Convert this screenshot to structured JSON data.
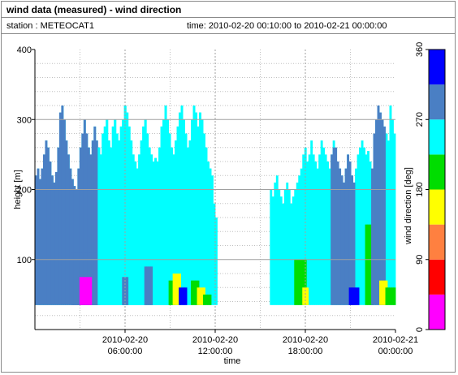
{
  "header": {
    "title": "wind data (measured) - wind direction",
    "station_label": "station : METEOCAT1",
    "time_label": "time: 2010-02-20 00:10:00 to 2010-02-21 00:00:00"
  },
  "chart_data": {
    "type": "heatmap",
    "title": "wind data (measured) - wind direction",
    "xlabel": "time",
    "ylabel": "height [m]",
    "xlim_hours": [
      0,
      24
    ],
    "ylim": [
      0,
      400
    ],
    "xticks": [
      {
        "hour": 6,
        "line1": "2010-02-20",
        "line2": "06:00:00"
      },
      {
        "hour": 12,
        "line1": "2010-02-20",
        "line2": "12:00:00"
      },
      {
        "hour": 18,
        "line1": "2010-02-20",
        "line2": "18:00:00"
      },
      {
        "hour": 24,
        "line1": "2010-02-21",
        "line2": "00:00:00"
      }
    ],
    "yticks": [
      100,
      200,
      300,
      400
    ],
    "grid": true,
    "colorbar": {
      "label": "wind direction [deg]",
      "min": 0,
      "max": 360,
      "ticks": [
        0,
        90,
        180,
        270,
        360
      ],
      "bins": [
        {
          "from": 0,
          "to": 45,
          "color": "#ff00ff"
        },
        {
          "from": 45,
          "to": 90,
          "color": "#ff0000"
        },
        {
          "from": 90,
          "to": 135,
          "color": "#ff8040"
        },
        {
          "from": 135,
          "to": 180,
          "color": "#ffff00"
        },
        {
          "from": 180,
          "to": 225,
          "color": "#00dd00"
        },
        {
          "from": 225,
          "to": 270,
          "color": "#00ffff"
        },
        {
          "from": 270,
          "to": 315,
          "color": "#4a7fc4"
        },
        {
          "from": 315,
          "to": 360,
          "color": "#0000ff"
        }
      ]
    },
    "profiles_bottom_m": 35,
    "profile_tops_m": [
      220,
      230,
      215,
      230,
      250,
      270,
      260,
      240,
      220,
      210,
      225,
      260,
      310,
      320,
      300,
      270,
      250,
      230,
      215,
      205,
      200,
      230,
      260,
      280,
      300,
      280,
      260,
      250,
      270,
      290,
      270,
      260,
      250,
      280,
      290,
      300,
      270,
      260,
      290,
      300,
      280,
      270,
      290,
      300,
      320,
      310,
      290,
      270,
      250,
      240,
      230,
      250,
      270,
      290,
      300,
      280,
      260,
      250,
      240,
      245,
      240,
      260,
      290,
      300,
      320,
      300,
      280,
      260,
      250,
      270,
      290,
      310,
      320,
      300,
      280,
      260,
      270,
      300,
      320,
      310,
      290,
      310,
      300,
      280,
      260,
      240,
      230,
      220,
      180,
      160,
      null,
      null,
      null,
      null,
      null,
      null,
      null,
      null,
      null,
      null,
      null,
      null,
      null,
      null,
      null,
      null,
      null,
      null,
      null,
      null,
      null,
      null,
      null,
      null,
      null,
      null,
      200,
      190,
      210,
      220,
      200,
      190,
      180,
      200,
      210,
      200,
      180,
      190,
      200,
      210,
      220,
      230,
      250,
      260,
      240,
      250,
      270,
      250,
      240,
      230,
      250,
      270,
      260,
      250,
      240,
      230,
      250,
      270,
      260,
      240,
      230,
      220,
      210,
      230,
      250,
      240,
      220,
      210,
      230,
      250,
      260,
      270,
      260,
      250,
      255,
      240,
      230,
      280,
      300,
      320,
      310,
      300,
      290,
      280,
      270,
      320,
      300,
      280
    ],
    "regions": [
      {
        "from_hour": 0.0,
        "to_hour": 4.2,
        "below_m": 400,
        "direction_deg": 292
      },
      {
        "from_hour": 2.5,
        "to_hour": 4.2,
        "below_m": 110,
        "direction_deg": 292
      },
      {
        "from_hour": 3.0,
        "to_hour": 3.7,
        "below_m": 75,
        "direction_deg": 20
      },
      {
        "from_hour": 4.2,
        "to_hour": 11.7,
        "below_m": 400,
        "direction_deg": 250
      },
      {
        "from_hour": 5.8,
        "to_hour": 6.2,
        "below_m": 75,
        "direction_deg": 292
      },
      {
        "from_hour": 7.4,
        "to_hour": 7.8,
        "below_m": 90,
        "direction_deg": 292
      },
      {
        "from_hour": 9.0,
        "to_hour": 9.3,
        "below_m": 70,
        "direction_deg": 200
      },
      {
        "from_hour": 9.3,
        "to_hour": 9.6,
        "below_m": 80,
        "direction_deg": 160
      },
      {
        "from_hour": 9.6,
        "to_hour": 10.0,
        "below_m": 60,
        "direction_deg": 335
      },
      {
        "from_hour": 10.4,
        "to_hour": 10.8,
        "below_m": 70,
        "direction_deg": 200
      },
      {
        "from_hour": 10.8,
        "to_hour": 11.2,
        "below_m": 60,
        "direction_deg": 160
      },
      {
        "from_hour": 11.2,
        "to_hour": 11.7,
        "below_m": 50,
        "direction_deg": 200
      },
      {
        "from_hour": 14.6,
        "to_hour": 15.1,
        "below_m": 60,
        "direction_deg": 20
      },
      {
        "from_hour": 15.0,
        "to_hour": 15.4,
        "below_m": 80,
        "direction_deg": 292
      },
      {
        "from_hour": 17.3,
        "to_hour": 18.0,
        "below_m": 100,
        "direction_deg": 200
      },
      {
        "from_hour": 17.8,
        "to_hour": 18.2,
        "below_m": 60,
        "direction_deg": 160
      },
      {
        "from_hour": 19.8,
        "to_hour": 21.3,
        "below_m": 260,
        "direction_deg": 292
      },
      {
        "from_hour": 21.0,
        "to_hour": 21.5,
        "below_m": 60,
        "direction_deg": 335
      },
      {
        "from_hour": 22.0,
        "to_hour": 22.5,
        "below_m": 150,
        "direction_deg": 200
      },
      {
        "from_hour": 22.5,
        "to_hour": 23.2,
        "below_m": 330,
        "direction_deg": 292
      },
      {
        "from_hour": 23.0,
        "to_hour": 23.4,
        "below_m": 70,
        "direction_deg": 160
      },
      {
        "from_hour": 23.4,
        "to_hour": 24.0,
        "below_m": 60,
        "direction_deg": 200
      }
    ]
  }
}
